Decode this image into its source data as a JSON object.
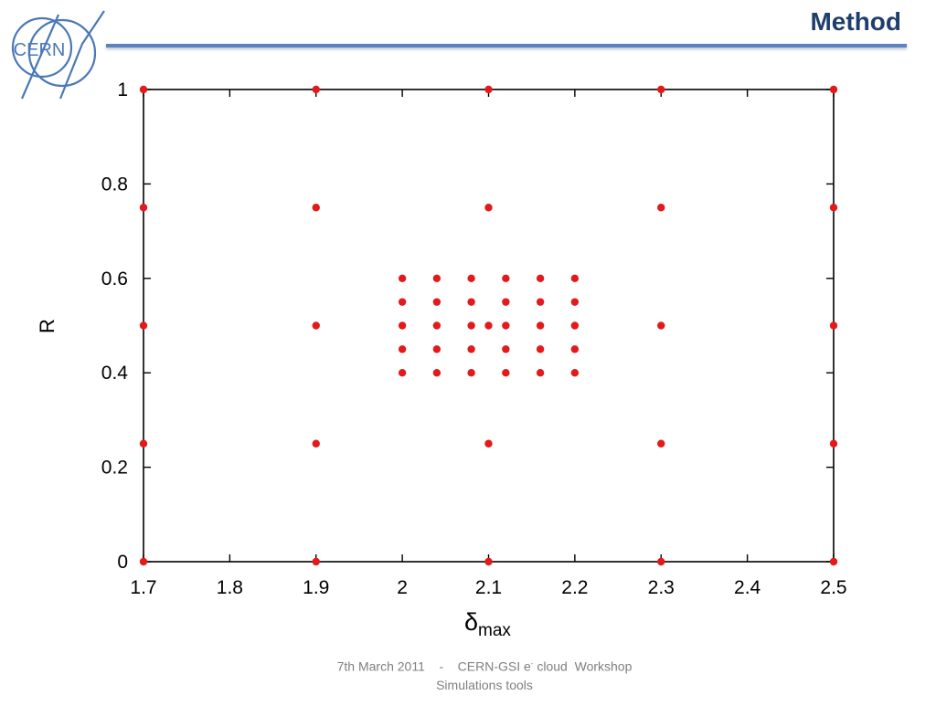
{
  "header": {
    "title": "Method",
    "logo_text": "CERN",
    "accent_color": "#1f3e6e",
    "rule_color": "#5b83c2"
  },
  "footer": {
    "date": "7th March 2011",
    "separator": "-",
    "event_prefix": "CERN-GSI e",
    "event_sup": "-",
    "event_suffix": " cloud  Workshop",
    "line2": "Simulations tools"
  },
  "chart_data": {
    "type": "scatter",
    "xlabel_main": "δ",
    "xlabel_sub": "max",
    "ylabel": "R",
    "xlim": [
      1.7,
      2.5
    ],
    "ylim": [
      0,
      1
    ],
    "xticks": [
      1.7,
      1.8,
      1.9,
      2,
      2.1,
      2.2,
      2.3,
      2.4,
      2.5
    ],
    "xtick_labels": [
      "1.7",
      "1.8",
      "1.9",
      "2",
      "2.1",
      "2.2",
      "2.3",
      "2.4",
      "2.5"
    ],
    "yticks": [
      0,
      0.2,
      0.4,
      0.6,
      0.8,
      1
    ],
    "ytick_labels": [
      "0",
      "0.2",
      "0.4",
      "0.6",
      "0.8",
      "1"
    ],
    "grid": false,
    "marker_color": "#e31a1c",
    "points": [
      [
        1.7,
        0
      ],
      [
        1.7,
        0.25
      ],
      [
        1.7,
        0.5
      ],
      [
        1.7,
        0.75
      ],
      [
        1.7,
        1
      ],
      [
        1.9,
        0
      ],
      [
        1.9,
        0.25
      ],
      [
        1.9,
        0.5
      ],
      [
        1.9,
        0.75
      ],
      [
        1.9,
        1
      ],
      [
        2.1,
        0
      ],
      [
        2.1,
        0.25
      ],
      [
        2.1,
        0.5
      ],
      [
        2.1,
        0.75
      ],
      [
        2.1,
        1
      ],
      [
        2.3,
        0
      ],
      [
        2.3,
        0.25
      ],
      [
        2.3,
        0.5
      ],
      [
        2.3,
        0.75
      ],
      [
        2.3,
        1
      ],
      [
        2.5,
        0
      ],
      [
        2.5,
        0.25
      ],
      [
        2.5,
        0.5
      ],
      [
        2.5,
        0.75
      ],
      [
        2.5,
        1
      ],
      [
        2.0,
        0.4
      ],
      [
        2.0,
        0.45
      ],
      [
        2.0,
        0.5
      ],
      [
        2.0,
        0.55
      ],
      [
        2.0,
        0.6
      ],
      [
        2.04,
        0.4
      ],
      [
        2.04,
        0.45
      ],
      [
        2.04,
        0.5
      ],
      [
        2.04,
        0.55
      ],
      [
        2.04,
        0.6
      ],
      [
        2.08,
        0.4
      ],
      [
        2.08,
        0.45
      ],
      [
        2.08,
        0.5
      ],
      [
        2.08,
        0.55
      ],
      [
        2.08,
        0.6
      ],
      [
        2.12,
        0.4
      ],
      [
        2.12,
        0.45
      ],
      [
        2.12,
        0.5
      ],
      [
        2.12,
        0.55
      ],
      [
        2.12,
        0.6
      ],
      [
        2.16,
        0.4
      ],
      [
        2.16,
        0.45
      ],
      [
        2.16,
        0.5
      ],
      [
        2.16,
        0.55
      ],
      [
        2.16,
        0.6
      ],
      [
        2.2,
        0.4
      ],
      [
        2.2,
        0.45
      ],
      [
        2.2,
        0.5
      ],
      [
        2.2,
        0.55
      ],
      [
        2.2,
        0.6
      ]
    ]
  }
}
